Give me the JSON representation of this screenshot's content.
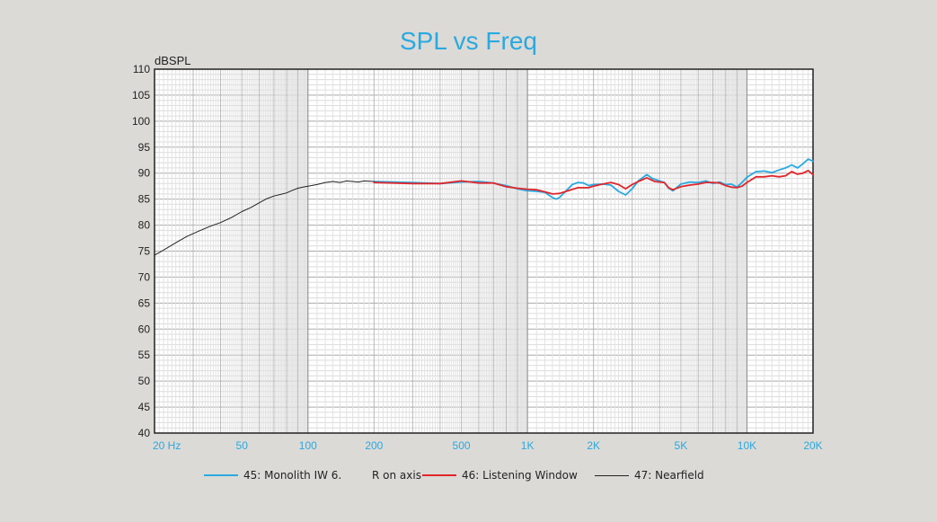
{
  "chart_data": {
    "type": "line",
    "title": "SPL vs Freq",
    "xlabel": "",
    "ylabel": "dBSPL",
    "x_scale": "log",
    "xlim": [
      20,
      20000
    ],
    "ylim": [
      40,
      110
    ],
    "grid": true,
    "legend_position": "bottom",
    "yticks": [
      "40",
      "45",
      "50",
      "55",
      "60",
      "65",
      "70",
      "75",
      "80",
      "85",
      "90",
      "95",
      "100",
      "105",
      "110"
    ],
    "xticks": [
      {
        "value": 20,
        "label": "20  Hz"
      },
      {
        "value": 50,
        "label": "50"
      },
      {
        "value": 100,
        "label": "100"
      },
      {
        "value": 200,
        "label": "200"
      },
      {
        "value": 500,
        "label": "500"
      },
      {
        "value": 1000,
        "label": "1K"
      },
      {
        "value": 2000,
        "label": "2K"
      },
      {
        "value": 5000,
        "label": "5K"
      },
      {
        "value": 10000,
        "label": "10K"
      },
      {
        "value": 20000,
        "label": "20K"
      }
    ],
    "series": [
      {
        "name": "45: Monolith IW 6.",
        "color": "#2aa9e0",
        "points": [
          [
            200,
            88.4
          ],
          [
            300,
            88.2
          ],
          [
            400,
            88.0
          ],
          [
            500,
            88.3
          ],
          [
            600,
            88.4
          ],
          [
            700,
            88.1
          ],
          [
            800,
            87.6
          ],
          [
            900,
            87.0
          ],
          [
            1000,
            86.6
          ],
          [
            1100,
            86.5
          ],
          [
            1200,
            86.3
          ],
          [
            1300,
            85.3
          ],
          [
            1350,
            85.0
          ],
          [
            1400,
            85.3
          ],
          [
            1500,
            86.6
          ],
          [
            1600,
            87.8
          ],
          [
            1700,
            88.2
          ],
          [
            1800,
            88.1
          ],
          [
            1900,
            87.6
          ],
          [
            2000,
            87.8
          ],
          [
            2200,
            87.9
          ],
          [
            2400,
            87.7
          ],
          [
            2600,
            86.5
          ],
          [
            2800,
            85.8
          ],
          [
            3000,
            87.0
          ],
          [
            3200,
            88.5
          ],
          [
            3500,
            89.7
          ],
          [
            3700,
            89.0
          ],
          [
            4000,
            88.5
          ],
          [
            4200,
            88.2
          ],
          [
            4400,
            87.1
          ],
          [
            4600,
            86.6
          ],
          [
            5000,
            87.9
          ],
          [
            5500,
            88.3
          ],
          [
            6000,
            88.2
          ],
          [
            6500,
            88.5
          ],
          [
            7000,
            88.0
          ],
          [
            7500,
            88.3
          ],
          [
            8000,
            87.8
          ],
          [
            8500,
            87.9
          ],
          [
            9000,
            87.3
          ],
          [
            9500,
            88.2
          ],
          [
            10000,
            89.2
          ],
          [
            11000,
            90.3
          ],
          [
            12000,
            90.4
          ],
          [
            13000,
            90.1
          ],
          [
            14000,
            90.6
          ],
          [
            15000,
            91.0
          ],
          [
            16000,
            91.6
          ],
          [
            17000,
            91.0
          ],
          [
            18000,
            91.8
          ],
          [
            19000,
            92.7
          ],
          [
            20000,
            92.3
          ]
        ]
      },
      {
        "name": "46: Listening Window",
        "color": "#e0262b",
        "points": [
          [
            200,
            88.2
          ],
          [
            300,
            88.0
          ],
          [
            400,
            88.0
          ],
          [
            500,
            88.5
          ],
          [
            600,
            88.1
          ],
          [
            700,
            88.1
          ],
          [
            800,
            87.4
          ],
          [
            900,
            87.1
          ],
          [
            1000,
            86.9
          ],
          [
            1100,
            86.8
          ],
          [
            1200,
            86.4
          ],
          [
            1300,
            86.0
          ],
          [
            1400,
            86.1
          ],
          [
            1500,
            86.5
          ],
          [
            1700,
            87.2
          ],
          [
            1900,
            87.2
          ],
          [
            2000,
            87.5
          ],
          [
            2200,
            87.9
          ],
          [
            2400,
            88.2
          ],
          [
            2600,
            87.8
          ],
          [
            2800,
            87.0
          ],
          [
            3000,
            87.8
          ],
          [
            3200,
            88.4
          ],
          [
            3500,
            89.1
          ],
          [
            3800,
            88.4
          ],
          [
            4000,
            88.3
          ],
          [
            4200,
            88.2
          ],
          [
            4400,
            87.2
          ],
          [
            4600,
            86.8
          ],
          [
            5000,
            87.4
          ],
          [
            5500,
            87.7
          ],
          [
            6000,
            87.9
          ],
          [
            6500,
            88.2
          ],
          [
            7000,
            88.2
          ],
          [
            7500,
            88.1
          ],
          [
            8000,
            87.6
          ],
          [
            8500,
            87.3
          ],
          [
            9000,
            87.2
          ],
          [
            9500,
            87.5
          ],
          [
            10000,
            88.2
          ],
          [
            11000,
            89.3
          ],
          [
            12000,
            89.3
          ],
          [
            13000,
            89.5
          ],
          [
            14000,
            89.3
          ],
          [
            15000,
            89.5
          ],
          [
            16000,
            90.3
          ],
          [
            17000,
            89.8
          ],
          [
            18000,
            90.0
          ],
          [
            19000,
            90.5
          ],
          [
            20000,
            89.7
          ]
        ]
      },
      {
        "name": "47: Nearfield",
        "color": "#222222",
        "points": [
          [
            20,
            74.2
          ],
          [
            22,
            75.2
          ],
          [
            25,
            76.6
          ],
          [
            28,
            77.8
          ],
          [
            32,
            78.9
          ],
          [
            36,
            79.8
          ],
          [
            40,
            80.5
          ],
          [
            45,
            81.5
          ],
          [
            50,
            82.6
          ],
          [
            55,
            83.4
          ],
          [
            60,
            84.3
          ],
          [
            65,
            85.1
          ],
          [
            70,
            85.6
          ],
          [
            75,
            85.9
          ],
          [
            80,
            86.2
          ],
          [
            85,
            86.7
          ],
          [
            90,
            87.1
          ],
          [
            95,
            87.3
          ],
          [
            100,
            87.5
          ],
          [
            110,
            87.8
          ],
          [
            120,
            88.2
          ],
          [
            130,
            88.4
          ],
          [
            140,
            88.2
          ],
          [
            150,
            88.5
          ],
          [
            160,
            88.4
          ],
          [
            170,
            88.3
          ],
          [
            180,
            88.5
          ],
          [
            200,
            88.4
          ]
        ]
      }
    ]
  },
  "legend": {
    "extra_text": "R on axis"
  }
}
